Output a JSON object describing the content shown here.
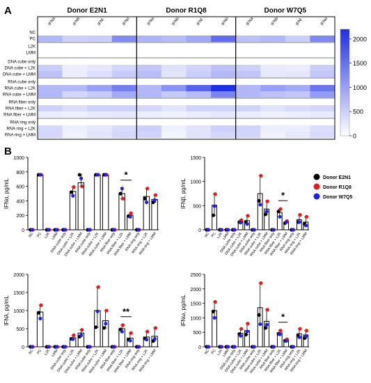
{
  "panels": {
    "a": "A",
    "b": "B"
  },
  "heatmap": {
    "donors": [
      "Donor E2N1",
      "Donor R1Q8",
      "Donor W7Q5"
    ],
    "columns": [
      "IFNa",
      "IFNb",
      "IFNl",
      "IFNo"
    ],
    "row_groups": [
      [
        "NC",
        "PC"
      ],
      [
        "L2K",
        "LMM"
      ],
      [
        "DNA cube only",
        "DNA cube + L2K",
        "DNA cube + LMM"
      ],
      [
        "RNA cube only",
        "RNA cube + L2K",
        "RNA cube + LMM"
      ],
      [
        "RNA fiber only",
        "RNA fiber + L2K",
        "RNA fiber + LMM"
      ],
      [
        "RNA ring only",
        "RNA ring + L2K",
        "RNA ring + LMM"
      ]
    ],
    "colorbar": {
      "min": 0,
      "max": 2200,
      "ticks": [
        0,
        500,
        1000,
        1500,
        2000
      ],
      "color_low": "#ffffff",
      "color_high": "#1f2ee8"
    },
    "values": [
      [
        [
          0,
          0,
          0,
          0,
          0,
          0,
          0,
          0,
          0,
          0,
          0,
          0
        ],
        [
          760,
          500,
          530,
          1220,
          800,
          720,
          930,
          1550,
          660,
          760,
          520,
          1250
        ]
      ],
      [
        [
          0,
          0,
          0,
          0,
          0,
          0,
          0,
          0,
          0,
          0,
          0,
          0
        ],
        [
          0,
          0,
          0,
          0,
          0,
          0,
          0,
          0,
          0,
          0,
          0,
          0
        ]
      ],
      [
        [
          0,
          0,
          0,
          0,
          0,
          0,
          0,
          0,
          0,
          0,
          0,
          0
        ],
        [
          520,
          180,
          250,
          420,
          600,
          320,
          450,
          650,
          500,
          220,
          200,
          520
        ],
        [
          650,
          200,
          330,
          550,
          700,
          280,
          520,
          750,
          620,
          240,
          260,
          600
        ]
      ],
      [
        [
          0,
          0,
          0,
          0,
          0,
          0,
          0,
          0,
          0,
          0,
          0,
          0
        ],
        [
          750,
          750,
          1000,
          1350,
          760,
          1150,
          1650,
          2200,
          760,
          1000,
          900,
          1450
        ],
        [
          760,
          420,
          550,
          900,
          760,
          560,
          720,
          1300,
          760,
          650,
          600,
          1050
        ]
      ],
      [
        [
          0,
          0,
          0,
          0,
          0,
          0,
          0,
          0,
          0,
          0,
          0,
          0
        ],
        [
          480,
          350,
          480,
          480,
          420,
          280,
          450,
          450,
          450,
          300,
          380,
          420
        ],
        [
          200,
          160,
          220,
          240,
          180,
          150,
          200,
          250,
          200,
          150,
          180,
          220
        ]
      ],
      [
        [
          0,
          0,
          0,
          0,
          0,
          0,
          0,
          0,
          0,
          0,
          0,
          0
        ],
        [
          400,
          170,
          250,
          380,
          500,
          160,
          280,
          500,
          460,
          180,
          200,
          360
        ],
        [
          420,
          150,
          280,
          420,
          460,
          120,
          300,
          420,
          440,
          150,
          240,
          380
        ]
      ]
    ]
  },
  "legend": [
    {
      "name": "Donor E2N1",
      "color": "#000000"
    },
    {
      "name": "Donor R1Q8",
      "color": "#e8191b"
    },
    {
      "name": "Donor W7Q5",
      "color": "#1f22e6"
    }
  ],
  "chart_data": [
    {
      "type": "bar",
      "ylabel": "IFNα, pg/mL",
      "ylim": [
        0,
        1000
      ],
      "yticks": [
        0,
        200,
        400,
        600,
        800,
        1000
      ],
      "categories": [
        "NC",
        "PC",
        "L2K",
        "LMM",
        "DNA cube only",
        "DNA cube + L2K",
        "DNA cube + LMM",
        "RNA cube only",
        "RNA cube + L2K",
        "RNA cube + LMM",
        "RNA fiber only",
        "RNA fiber + L2K",
        "RNA fiber + LMM",
        "RNA ring only",
        "RNA ring + L2K",
        "RNA ring + LMM"
      ],
      "values": [
        0,
        760,
        0,
        0,
        0,
        530,
        650,
        0,
        760,
        760,
        0,
        500,
        200,
        0,
        460,
        420
      ],
      "points": {
        "Donor E2N1": [
          0,
          760,
          0,
          0,
          0,
          520,
          760,
          0,
          760,
          760,
          0,
          500,
          190,
          0,
          430,
          380
        ],
        "Donor R1Q8": [
          0,
          760,
          0,
          0,
          0,
          590,
          600,
          0,
          760,
          760,
          0,
          430,
          230,
          0,
          570,
          480
        ],
        "Donor W7Q5": [
          0,
          760,
          0,
          0,
          0,
          470,
          710,
          0,
          760,
          760,
          0,
          570,
          180,
          0,
          380,
          410
        ]
      },
      "significance": {
        "label": "*",
        "from": "RNA fiber + L2K",
        "to": "RNA fiber + LMM"
      }
    },
    {
      "type": "bar",
      "ylabel": "IFNβ, pg/mL",
      "ylim": [
        0,
        1500
      ],
      "yticks": [
        0,
        500,
        1000,
        1500
      ],
      "categories": [
        "NC",
        "PC",
        "L2K",
        "LMM",
        "DNA cube only",
        "DNA cube + L2K",
        "DNA cube + LMM",
        "RNA cube only",
        "RNA cube + L2K",
        "RNA cube + LMM",
        "RNA fiber only",
        "RNA fiber + L2K",
        "RNA fiber + LMM",
        "RNA ring only",
        "RNA ring + L2K",
        "RNA ring + LMM"
      ],
      "values": [
        0,
        510,
        0,
        0,
        0,
        170,
        190,
        0,
        750,
        430,
        0,
        360,
        160,
        0,
        210,
        160
      ],
      "points": {
        "Donor E2N1": [
          0,
          300,
          0,
          0,
          0,
          160,
          160,
          0,
          600,
          320,
          0,
          380,
          140,
          0,
          160,
          120
        ],
        "Donor R1Q8": [
          0,
          740,
          0,
          0,
          0,
          200,
          290,
          0,
          1120,
          590,
          0,
          430,
          180,
          0,
          310,
          270
        ],
        "Donor W7Q5": [
          0,
          490,
          0,
          0,
          0,
          150,
          120,
          0,
          520,
          380,
          0,
          270,
          160,
          0,
          160,
          90
        ]
      },
      "significance": {
        "label": "*",
        "from": "RNA fiber + L2K",
        "to": "RNA fiber + LMM"
      }
    },
    {
      "type": "bar",
      "ylabel": "IFNλ, pg/mL",
      "ylim": [
        0,
        2000
      ],
      "yticks": [
        0,
        500,
        1000,
        1500,
        2000
      ],
      "categories": [
        "NC",
        "PC",
        "L2K",
        "LMM",
        "DNA cube only",
        "DNA cube + L2K",
        "DNA cube + LMM",
        "RNA cube only",
        "RNA cube + L2K",
        "RNA cube + LMM",
        "RNA fiber only",
        "RNA fiber + L2K",
        "RNA fiber + LMM",
        "RNA ring only",
        "RNA ring + L2K",
        "RNA ring + LMM"
      ],
      "values": [
        0,
        960,
        0,
        0,
        0,
        250,
        380,
        0,
        1000,
        720,
        0,
        500,
        240,
        0,
        270,
        290
      ],
      "points": {
        "Donor E2N1": [
          0,
          940,
          0,
          0,
          0,
          220,
          280,
          0,
          540,
          520,
          0,
          480,
          200,
          0,
          230,
          160
        ],
        "Donor R1Q8": [
          0,
          1150,
          0,
          0,
          0,
          320,
          470,
          0,
          1650,
          1000,
          0,
          600,
          380,
          0,
          420,
          520
        ],
        "Donor W7Q5": [
          0,
          780,
          0,
          0,
          0,
          210,
          320,
          0,
          980,
          640,
          0,
          420,
          170,
          0,
          200,
          220
        ]
      },
      "significance": {
        "label": "**",
        "from": "RNA fiber + L2K",
        "to": "RNA fiber + LMM"
      }
    },
    {
      "type": "bar",
      "ylabel": "IFNω, pg/mL",
      "ylim": [
        0,
        2500
      ],
      "yticks": [
        0,
        500,
        1000,
        1500,
        2000,
        2500
      ],
      "categories": [
        "NC",
        "PC",
        "L2K",
        "LMM",
        "DNA cube only",
        "DNA cube + L2K",
        "DNA cube + LMM",
        "RNA cube only",
        "RNA cube + L2K",
        "RNA cube + LMM",
        "RNA fiber only",
        "RNA fiber + L2K",
        "RNA fiber + LMM",
        "RNA ring only",
        "RNA ring + L2K",
        "RNA ring + LMM"
      ],
      "values": [
        0,
        1250,
        0,
        0,
        0,
        470,
        560,
        0,
        1350,
        880,
        0,
        480,
        230,
        0,
        450,
        410
      ],
      "points": {
        "Donor E2N1": [
          0,
          1220,
          0,
          0,
          0,
          440,
          420,
          0,
          1100,
          650,
          0,
          450,
          210,
          0,
          380,
          300
        ],
        "Donor R1Q8": [
          0,
          1550,
          0,
          0,
          0,
          620,
          800,
          0,
          2200,
          1280,
          0,
          560,
          260,
          0,
          620,
          560
        ],
        "Donor W7Q5": [
          0,
          1000,
          0,
          0,
          0,
          380,
          530,
          0,
          780,
          760,
          0,
          430,
          200,
          0,
          330,
          370
        ]
      },
      "significance": {
        "label": "*",
        "from": "RNA fiber + L2K",
        "to": "RNA fiber + LMM"
      }
    }
  ]
}
